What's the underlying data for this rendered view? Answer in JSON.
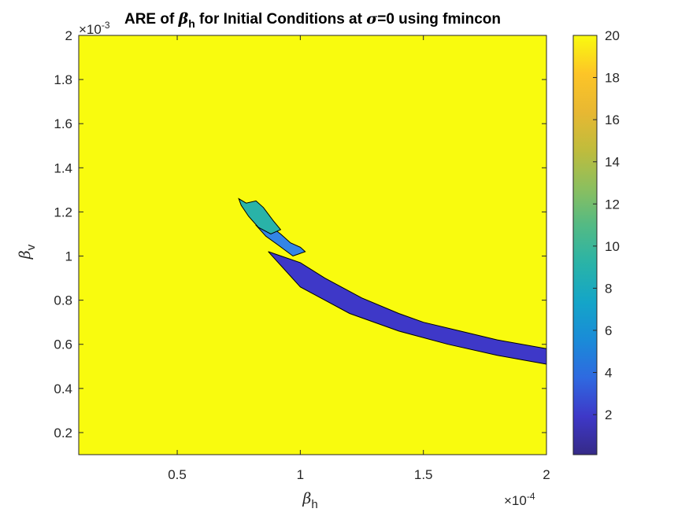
{
  "chart_data": {
    "type": "heatmap",
    "title_parts": [
      "ARE of ",
      "β",
      "h",
      " for Initial Conditions at ",
      "σ",
      "=0 using fmincon"
    ],
    "xlabel_parts": [
      "β",
      "h"
    ],
    "ylabel_parts": [
      "β",
      "v"
    ],
    "x_exponent": "×10",
    "x_exponent_power": "-4",
    "y_exponent": "×10",
    "y_exponent_power": "-3",
    "xlim": [
      0.1,
      2.0
    ],
    "ylim": [
      0.1,
      2.0
    ],
    "x_ticks": [
      0.5,
      1.0,
      1.5,
      2.0
    ],
    "x_tick_labels": [
      "0.5",
      "1",
      "1.5",
      "2"
    ],
    "y_ticks": [
      0.2,
      0.4,
      0.6,
      0.8,
      1.0,
      1.2,
      1.4,
      1.6,
      1.8,
      2.0
    ],
    "y_tick_labels": [
      "0.2",
      "0.4",
      "0.6",
      "0.8",
      "1",
      "1.2",
      "1.4",
      "1.6",
      "1.8",
      "2"
    ],
    "colorbar": {
      "min": 0.1,
      "max": 20,
      "ticks": [
        2,
        4,
        6,
        8,
        10,
        12,
        14,
        16,
        18,
        20
      ],
      "tick_labels": [
        "2",
        "4",
        "6",
        "8",
        "10",
        "12",
        "14",
        "16",
        "18",
        "20"
      ],
      "colormap": "parula"
    },
    "background_value": 20,
    "background_color": "#f9fb0e",
    "region_colors": {
      "low": "#3e38c8",
      "mid": "#3385e6",
      "high": "#29b3a8",
      "outline": "#000000"
    },
    "regions": [
      {
        "name": "low-error-band",
        "value": 1.5,
        "upper": [
          [
            0.87,
            1.02
          ],
          [
            1.0,
            0.97
          ],
          [
            1.1,
            0.9
          ],
          [
            1.25,
            0.81
          ],
          [
            1.4,
            0.74
          ],
          [
            1.5,
            0.7
          ],
          [
            1.65,
            0.66
          ],
          [
            1.8,
            0.62
          ],
          [
            2.0,
            0.58
          ]
        ],
        "lower": [
          [
            2.0,
            0.51
          ],
          [
            1.9,
            0.53
          ],
          [
            1.8,
            0.55
          ],
          [
            1.6,
            0.6
          ],
          [
            1.4,
            0.66
          ],
          [
            1.2,
            0.74
          ],
          [
            1.0,
            0.86
          ],
          [
            0.87,
            1.02
          ]
        ]
      },
      {
        "name": "mid-error-band",
        "value": 5.5,
        "upper": [
          [
            0.86,
            1.15
          ],
          [
            0.92,
            1.1
          ],
          [
            0.96,
            1.06
          ],
          [
            1.0,
            1.04
          ],
          [
            1.02,
            1.02
          ]
        ],
        "lower": [
          [
            1.02,
            1.02
          ],
          [
            0.97,
            1.0
          ],
          [
            0.91,
            1.05
          ],
          [
            0.86,
            1.09
          ],
          [
            0.82,
            1.14
          ],
          [
            0.86,
            1.15
          ]
        ]
      },
      {
        "name": "high-error-tip",
        "value": 10,
        "upper": [
          [
            0.75,
            1.26
          ],
          [
            0.78,
            1.24
          ],
          [
            0.82,
            1.25
          ],
          [
            0.85,
            1.22
          ],
          [
            0.89,
            1.16
          ],
          [
            0.92,
            1.12
          ]
        ],
        "lower": [
          [
            0.92,
            1.12
          ],
          [
            0.88,
            1.1
          ],
          [
            0.83,
            1.13
          ],
          [
            0.79,
            1.18
          ],
          [
            0.76,
            1.23
          ],
          [
            0.75,
            1.26
          ]
        ]
      }
    ]
  }
}
